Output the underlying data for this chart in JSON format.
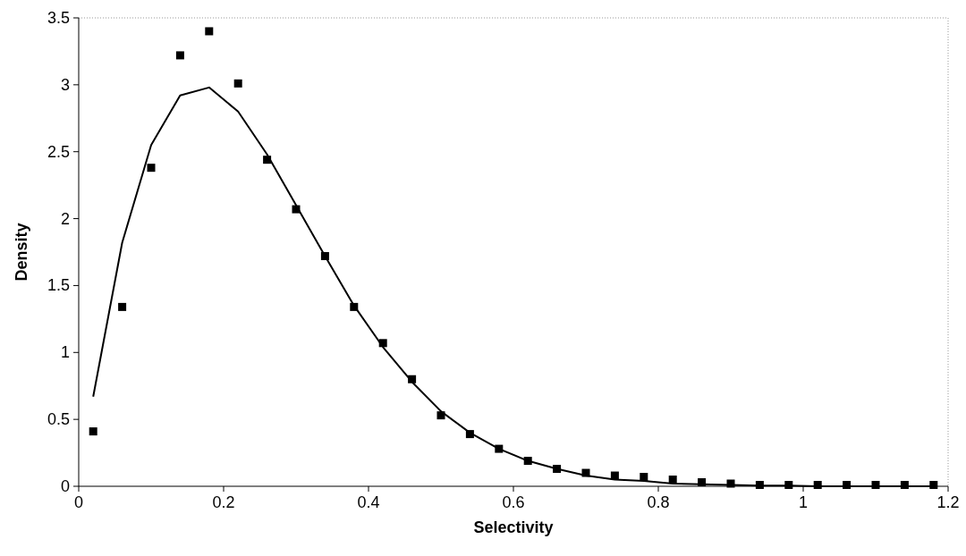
{
  "chart_data": {
    "type": "scatter",
    "xlabel": "Selectivity",
    "ylabel": "Density",
    "xlim": [
      0,
      1.2
    ],
    "xticks": [
      0,
      0.2,
      0.4,
      0.6,
      0.8,
      1,
      1.2
    ],
    "ylim": [
      0,
      3.5
    ],
    "yticks": [
      0,
      0.5,
      1,
      1.5,
      2,
      2.5,
      3,
      3.5
    ],
    "grid": false,
    "series": [
      {
        "color": "#000000",
        "marker": "square",
        "x": [
          0.02,
          0.06,
          0.1,
          0.14,
          0.18,
          0.22,
          0.26,
          0.3,
          0.34,
          0.38,
          0.42,
          0.46,
          0.5,
          0.54,
          0.58,
          0.62,
          0.66,
          0.7,
          0.74,
          0.78,
          0.82,
          0.86,
          0.9,
          0.94,
          0.98,
          1.02,
          1.06,
          1.1,
          1.14,
          1.18
        ],
        "values": [
          0.41,
          1.34,
          2.38,
          3.22,
          3.4,
          3.01,
          2.44,
          2.07,
          1.72,
          1.34,
          1.07,
          0.8,
          0.53,
          0.39,
          0.28,
          0.19,
          0.13,
          0.1,
          0.08,
          0.07,
          0.05,
          0.03,
          0.02,
          0.01,
          0.01,
          0.01,
          0.01,
          0.01,
          0.01,
          0.01
        ]
      },
      {
        "type": "line",
        "color": "#000000",
        "line_style": "solid",
        "x": [
          0.02,
          0.06,
          0.1,
          0.14,
          0.18,
          0.22,
          0.26,
          0.3,
          0.34,
          0.38,
          0.42,
          0.46,
          0.5,
          0.54,
          0.58,
          0.62,
          0.66,
          0.7,
          0.74,
          0.78,
          0.82,
          0.86,
          0.9,
          0.94,
          0.98,
          1.02,
          1.06,
          1.1,
          1.14,
          1.18
        ],
        "values": [
          0.67,
          1.82,
          2.55,
          2.92,
          2.98,
          2.8,
          2.48,
          2.1,
          1.72,
          1.35,
          1.04,
          0.78,
          0.56,
          0.4,
          0.28,
          0.19,
          0.13,
          0.08,
          0.05,
          0.04,
          0.02,
          0.015,
          0.01,
          0.005,
          0.005,
          0,
          0,
          0,
          0,
          0
        ]
      }
    ]
  }
}
